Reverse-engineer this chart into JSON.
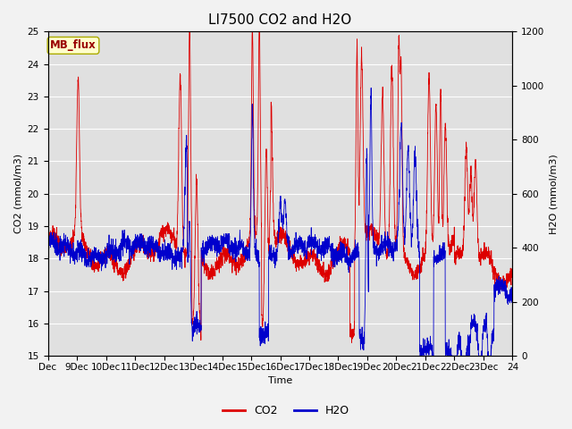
{
  "title": "LI7500 CO2 and H2O",
  "xlabel": "Time",
  "ylabel_left": "CO2 (mmol/m3)",
  "ylabel_right": "H2O (mmol/m3)",
  "co2_ylim": [
    15.0,
    25.0
  ],
  "h2o_ylim": [
    0,
    1200
  ],
  "co2_yticks": [
    15.0,
    16.0,
    17.0,
    18.0,
    19.0,
    20.0,
    21.0,
    22.0,
    23.0,
    24.0,
    25.0
  ],
  "h2o_yticks": [
    0,
    200,
    400,
    600,
    800,
    1000,
    1200
  ],
  "xtick_labels": [
    "Dec",
    "9Dec",
    "10Dec",
    "11Dec",
    "12Dec",
    "13Dec",
    "14Dec",
    "15Dec",
    "16Dec",
    "17Dec",
    "18Dec",
    "19Dec",
    "20Dec",
    "21Dec",
    "22Dec",
    "23Dec",
    "24"
  ],
  "co2_color": "#dd0000",
  "h2o_color": "#0000cc",
  "fig_bg_color": "#f2f2f2",
  "plot_bg_color": "#e0e0e0",
  "legend_co2": "CO2",
  "legend_h2o": "H2O",
  "annotation_text": "MB_flux",
  "annotation_bg": "#ffffcc",
  "annotation_border": "#aaaa00",
  "annotation_text_color": "#990000",
  "n_points": 3000,
  "title_fontsize": 11,
  "label_fontsize": 8,
  "tick_fontsize": 7.5,
  "legend_fontsize": 9
}
